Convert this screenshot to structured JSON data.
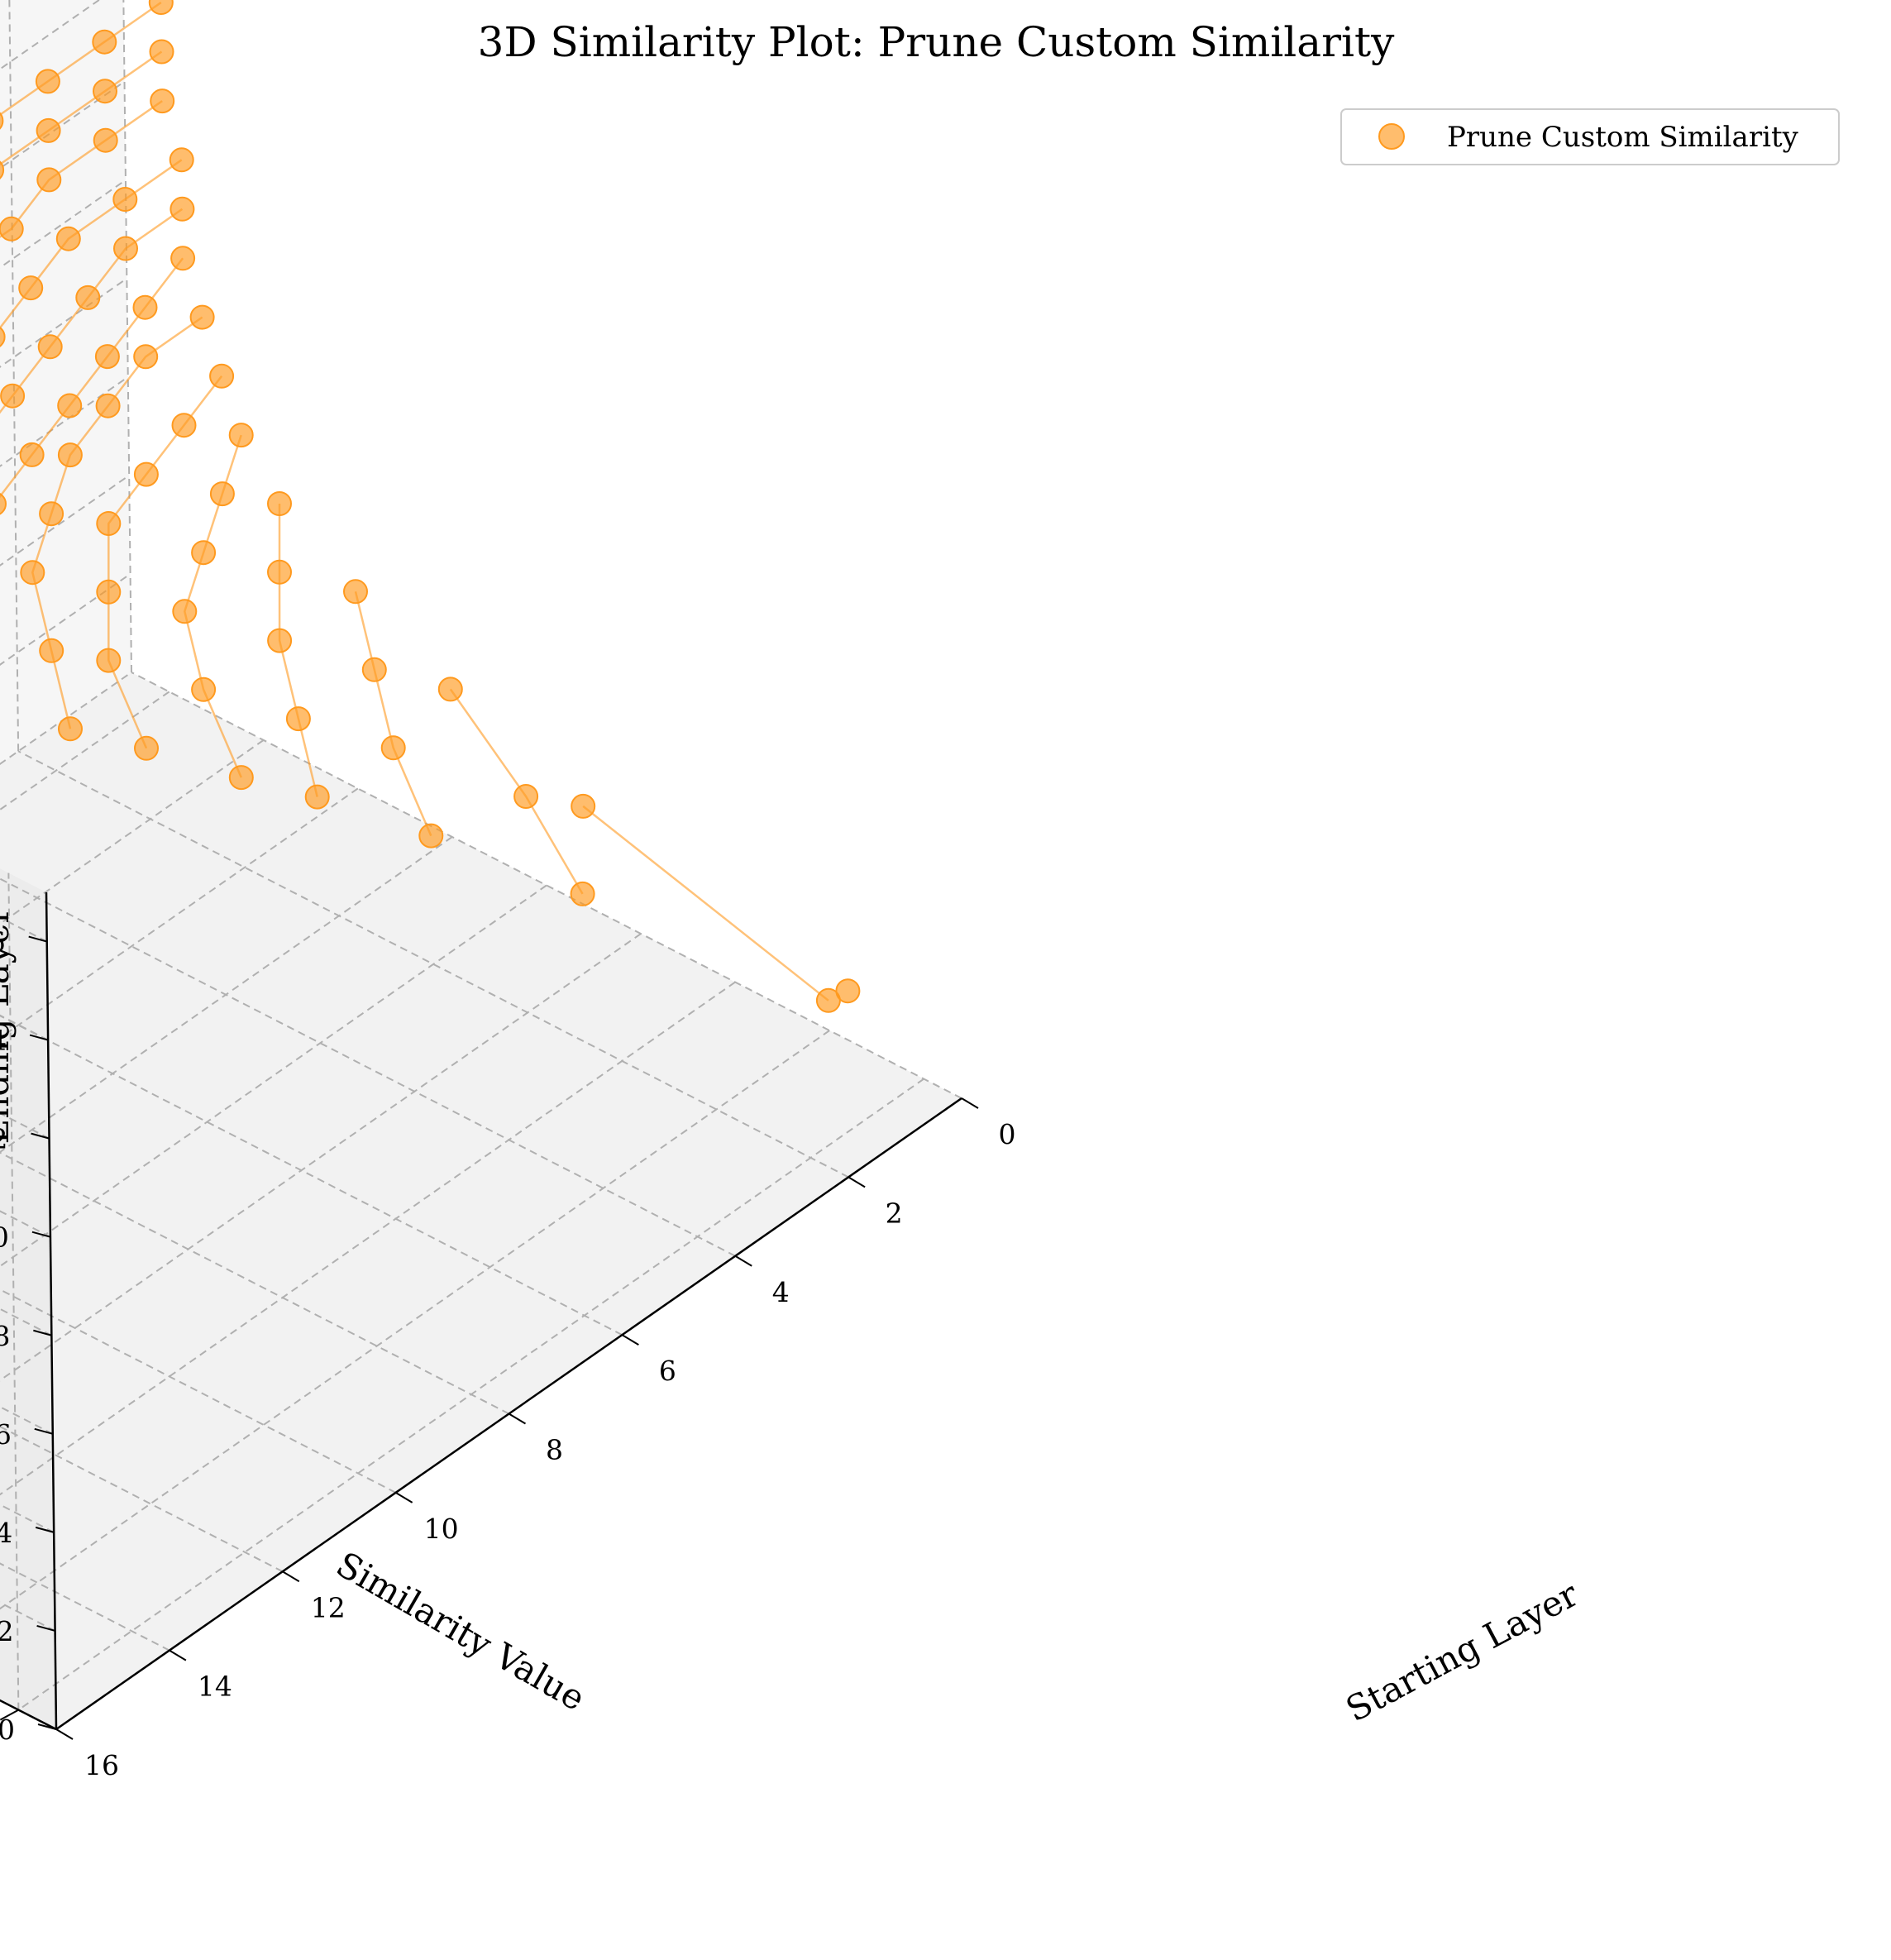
{
  "chart_data": {
    "type": "scatter",
    "title": "3D Similarity Plot: Prune Custom Similarity",
    "xlabel": "Starting Layer",
    "ylabel": "Similarity Value",
    "zlabel": "Ending Layer",
    "xlim": [
      0,
      16
    ],
    "ylim": [
      0.28,
      0.72
    ],
    "zlim": [
      0,
      17
    ],
    "x_ticks": [
      "0",
      "2",
      "4",
      "6",
      "8",
      "10",
      "12",
      "14",
      "16"
    ],
    "y_ticks": [
      "0.30",
      "0.35",
      "0.40",
      "0.45",
      "0.50",
      "0.55",
      "0.60",
      "0.65",
      "0.70"
    ],
    "z_ticks": [
      "0",
      "2",
      "4",
      "6",
      "8",
      "10",
      "12",
      "14",
      "16"
    ],
    "grid": true,
    "legend_position": "top-right",
    "series": [
      {
        "name": "Prune Custom Similarity",
        "color": "#ff9a1f",
        "points": [
          {
            "x": 0,
            "y": 0.66,
            "z": 1
          },
          {
            "x": 1,
            "y": 0.68,
            "z": 2
          },
          {
            "x": 0,
            "y": 0.52,
            "z": 2
          },
          {
            "x": 2,
            "y": 0.58,
            "z": 3
          },
          {
            "x": 1,
            "y": 0.52,
            "z": 3
          },
          {
            "x": 0,
            "y": 0.45,
            "z": 3
          },
          {
            "x": 3,
            "y": 0.53,
            "z": 4
          },
          {
            "x": 2,
            "y": 0.48,
            "z": 4
          },
          {
            "x": 1,
            "y": 0.44,
            "z": 4
          },
          {
            "x": 0,
            "y": 0.4,
            "z": 4
          },
          {
            "x": 4,
            "y": 0.5,
            "z": 5
          },
          {
            "x": 3,
            "y": 0.46,
            "z": 5
          },
          {
            "x": 2,
            "y": 0.42,
            "z": 5
          },
          {
            "x": 1,
            "y": 0.39,
            "z": 5
          },
          {
            "x": 0,
            "y": 0.36,
            "z": 5
          },
          {
            "x": 5,
            "y": 0.49,
            "z": 6
          },
          {
            "x": 4,
            "y": 0.44,
            "z": 6
          },
          {
            "x": 3,
            "y": 0.4,
            "z": 6
          },
          {
            "x": 2,
            "y": 0.38,
            "z": 6
          },
          {
            "x": 1,
            "y": 0.36,
            "z": 6
          },
          {
            "x": 0,
            "y": 0.34,
            "z": 6
          },
          {
            "x": 6,
            "y": 0.47,
            "z": 7
          },
          {
            "x": 5,
            "y": 0.42,
            "z": 7
          },
          {
            "x": 4,
            "y": 0.39,
            "z": 7
          },
          {
            "x": 3,
            "y": 0.36,
            "z": 7
          },
          {
            "x": 2,
            "y": 0.35,
            "z": 7
          },
          {
            "x": 1,
            "y": 0.34,
            "z": 7
          },
          {
            "x": 0,
            "y": 0.33,
            "z": 7
          },
          {
            "x": 7,
            "y": 0.46,
            "z": 8
          },
          {
            "x": 6,
            "y": 0.42,
            "z": 8
          },
          {
            "x": 5,
            "y": 0.38,
            "z": 8
          },
          {
            "x": 4,
            "y": 0.36,
            "z": 8
          },
          {
            "x": 3,
            "y": 0.34,
            "z": 8
          },
          {
            "x": 2,
            "y": 0.33,
            "z": 8
          },
          {
            "x": 1,
            "y": 0.32,
            "z": 8
          },
          {
            "x": 0,
            "y": 0.32,
            "z": 8
          },
          {
            "x": 8,
            "y": 0.44,
            "z": 9
          },
          {
            "x": 7,
            "y": 0.41,
            "z": 9
          },
          {
            "x": 6,
            "y": 0.38,
            "z": 9
          },
          {
            "x": 5,
            "y": 0.36,
            "z": 9
          },
          {
            "x": 4,
            "y": 0.35,
            "z": 9
          },
          {
            "x": 3,
            "y": 0.34,
            "z": 9
          },
          {
            "x": 2,
            "y": 0.33,
            "z": 9
          },
          {
            "x": 1,
            "y": 0.32,
            "z": 9
          },
          {
            "x": 0,
            "y": 0.31,
            "z": 9
          },
          {
            "x": 9,
            "y": 0.43,
            "z": 10
          },
          {
            "x": 8,
            "y": 0.4,
            "z": 10
          },
          {
            "x": 7,
            "y": 0.37,
            "z": 10
          },
          {
            "x": 6,
            "y": 0.36,
            "z": 10
          },
          {
            "x": 5,
            "y": 0.35,
            "z": 10
          },
          {
            "x": 4,
            "y": 0.34,
            "z": 10
          },
          {
            "x": 3,
            "y": 0.33,
            "z": 10
          },
          {
            "x": 2,
            "y": 0.32,
            "z": 10
          },
          {
            "x": 1,
            "y": 0.31,
            "z": 10
          },
          {
            "x": 0,
            "y": 0.31,
            "z": 10
          },
          {
            "x": 10,
            "y": 0.42,
            "z": 11
          },
          {
            "x": 9,
            "y": 0.38,
            "z": 11
          },
          {
            "x": 8,
            "y": 0.37,
            "z": 11
          },
          {
            "x": 7,
            "y": 0.36,
            "z": 11
          },
          {
            "x": 6,
            "y": 0.35,
            "z": 11
          },
          {
            "x": 5,
            "y": 0.34,
            "z": 11
          },
          {
            "x": 4,
            "y": 0.33,
            "z": 11
          },
          {
            "x": 3,
            "y": 0.32,
            "z": 11
          },
          {
            "x": 2,
            "y": 0.31,
            "z": 11
          },
          {
            "x": 1,
            "y": 0.31,
            "z": 11
          },
          {
            "x": 0,
            "y": 0.31,
            "z": 11
          },
          {
            "x": 11,
            "y": 0.4,
            "z": 12
          },
          {
            "x": 10,
            "y": 0.38,
            "z": 12
          },
          {
            "x": 9,
            "y": 0.36,
            "z": 12
          },
          {
            "x": 8,
            "y": 0.35,
            "z": 12
          },
          {
            "x": 7,
            "y": 0.34,
            "z": 12
          },
          {
            "x": 6,
            "y": 0.33,
            "z": 12
          },
          {
            "x": 5,
            "y": 0.32,
            "z": 12
          },
          {
            "x": 4,
            "y": 0.31,
            "z": 12
          },
          {
            "x": 3,
            "y": 0.31,
            "z": 12
          },
          {
            "x": 2,
            "y": 0.3,
            "z": 12
          },
          {
            "x": 1,
            "y": 0.3,
            "z": 12
          },
          {
            "x": 0,
            "y": 0.3,
            "z": 12
          },
          {
            "x": 12,
            "y": 0.39,
            "z": 13
          },
          {
            "x": 11,
            "y": 0.36,
            "z": 13
          },
          {
            "x": 10,
            "y": 0.35,
            "z": 13
          },
          {
            "x": 9,
            "y": 0.34,
            "z": 13
          },
          {
            "x": 8,
            "y": 0.33,
            "z": 13
          },
          {
            "x": 7,
            "y": 0.32,
            "z": 13
          },
          {
            "x": 6,
            "y": 0.31,
            "z": 13
          },
          {
            "x": 5,
            "y": 0.31,
            "z": 13
          },
          {
            "x": 4,
            "y": 0.3,
            "z": 13
          },
          {
            "x": 3,
            "y": 0.3,
            "z": 13
          },
          {
            "x": 2,
            "y": 0.3,
            "z": 13
          },
          {
            "x": 1,
            "y": 0.3,
            "z": 13
          },
          {
            "x": 0,
            "y": 0.3,
            "z": 13
          },
          {
            "x": 13,
            "y": 0.38,
            "z": 14
          },
          {
            "x": 12,
            "y": 0.35,
            "z": 14
          },
          {
            "x": 11,
            "y": 0.34,
            "z": 14
          },
          {
            "x": 10,
            "y": 0.33,
            "z": 14
          },
          {
            "x": 9,
            "y": 0.32,
            "z": 14
          },
          {
            "x": 8,
            "y": 0.31,
            "z": 14
          },
          {
            "x": 7,
            "y": 0.31,
            "z": 14
          },
          {
            "x": 6,
            "y": 0.3,
            "z": 14
          },
          {
            "x": 5,
            "y": 0.3,
            "z": 14
          },
          {
            "x": 4,
            "y": 0.3,
            "z": 14
          },
          {
            "x": 3,
            "y": 0.3,
            "z": 14
          },
          {
            "x": 2,
            "y": 0.3,
            "z": 14
          },
          {
            "x": 1,
            "y": 0.3,
            "z": 14
          },
          {
            "x": 0,
            "y": 0.3,
            "z": 14
          },
          {
            "x": 14,
            "y": 0.37,
            "z": 15
          },
          {
            "x": 13,
            "y": 0.34,
            "z": 15
          },
          {
            "x": 12,
            "y": 0.33,
            "z": 15
          },
          {
            "x": 11,
            "y": 0.32,
            "z": 15
          },
          {
            "x": 10,
            "y": 0.31,
            "z": 15
          },
          {
            "x": 15,
            "y": 0.36,
            "z": 16
          },
          {
            "x": 14,
            "y": 0.33,
            "z": 16
          },
          {
            "x": 13,
            "y": 0.32,
            "z": 16
          },
          {
            "x": 12,
            "y": 0.31,
            "z": 16
          },
          {
            "x": 16,
            "y": 0.35,
            "z": 17
          },
          {
            "x": 15,
            "y": 0.32,
            "z": 17
          },
          {
            "x": 16,
            "y": 0.31,
            "z": 16
          },
          {
            "x": 16,
            "y": 0.3,
            "z": 15
          }
        ]
      }
    ]
  }
}
